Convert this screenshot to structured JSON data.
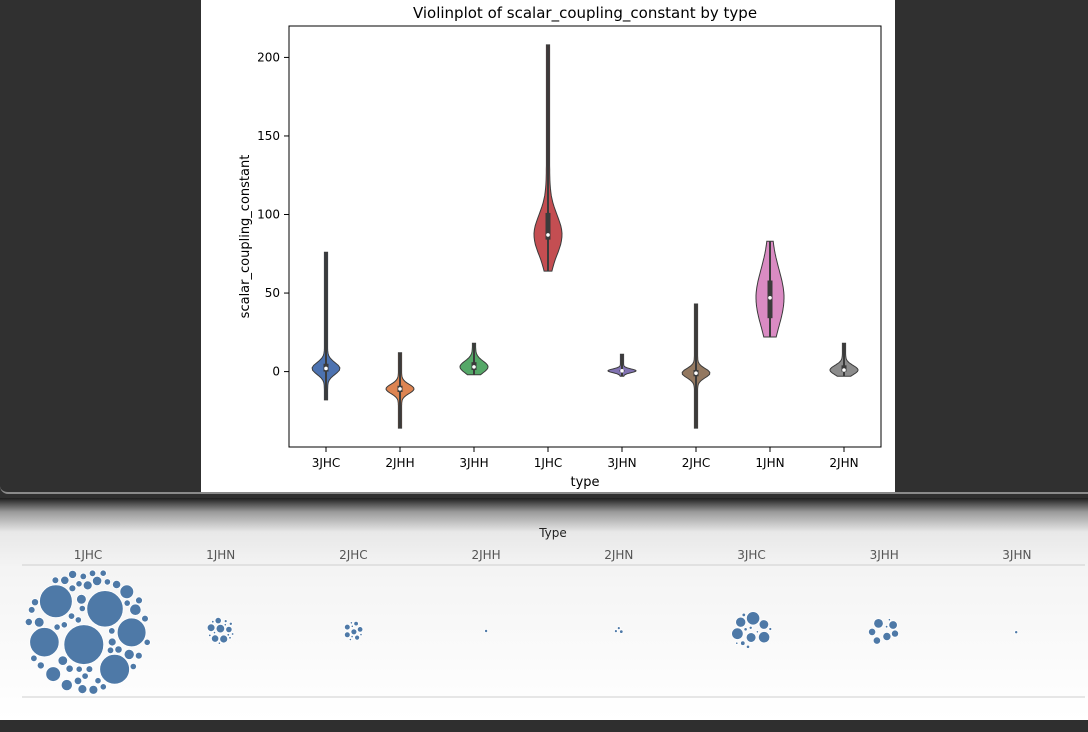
{
  "chart_data": [
    {
      "type": "violin",
      "title": "Violinplot of scalar_coupling_constant by type",
      "xlabel": "type",
      "ylabel": "scalar_coupling_constant",
      "ylim": [
        -48,
        220
      ],
      "yticks": [
        0,
        50,
        100,
        150,
        200
      ],
      "categories": [
        "3JHC",
        "2JHH",
        "3JHH",
        "1JHC",
        "3JHN",
        "2JHC",
        "1JHN",
        "2JHN"
      ],
      "colors": [
        "#4c72b0",
        "#dd8452",
        "#55a868",
        "#c44e52",
        "#8172b2",
        "#937860",
        "#da8bc3",
        "#8c8c8c"
      ],
      "violins": [
        {
          "category": "3JHC",
          "min": -18,
          "max": 76,
          "median": 2,
          "q1": 0,
          "q3": 5
        },
        {
          "category": "2JHH",
          "min": -36,
          "max": 12,
          "median": -11,
          "q1": -13,
          "q3": -9
        },
        {
          "category": "3JHH",
          "min": -2,
          "max": 18,
          "median": 3,
          "q1": 1,
          "q3": 6
        },
        {
          "category": "1JHC",
          "min": 64,
          "max": 208,
          "median": 87,
          "q1": 84,
          "q3": 101
        },
        {
          "category": "3JHN",
          "min": -3,
          "max": 11,
          "median": 0.5,
          "q1": 0,
          "q3": 1
        },
        {
          "category": "2JHC",
          "min": -36,
          "max": 43,
          "median": -1,
          "q1": -3,
          "q3": 1
        },
        {
          "category": "1JHN",
          "min": 22,
          "max": 83,
          "median": 47,
          "q1": 34,
          "q3": 58
        },
        {
          "category": "2JHN",
          "min": -3,
          "max": 18,
          "median": 1,
          "q1": 0,
          "q3": 4
        }
      ]
    },
    {
      "type": "packed-bubble",
      "title": "Type",
      "categories": [
        "1JHC",
        "1JHN",
        "2JHC",
        "2JHH",
        "2JHN",
        "3JHC",
        "3JHH",
        "3JHN"
      ],
      "bubble_counts": [
        80,
        30,
        22,
        1,
        6,
        14,
        8,
        2
      ],
      "relative_size": [
        1.0,
        0.22,
        0.16,
        0.02,
        0.07,
        0.33,
        0.25,
        0.05
      ],
      "color": "#4e79a7"
    }
  ]
}
